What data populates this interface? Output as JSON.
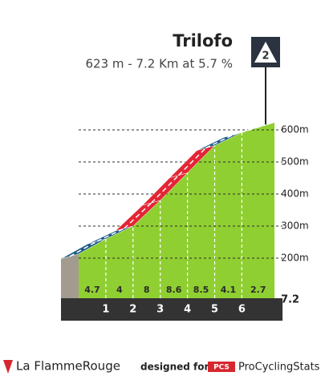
{
  "chart_data": {
    "type": "climb-profile",
    "title": "Trilofo",
    "subtitle": "623 m - 7.2 Km at 5.7 %",
    "category": "2",
    "x": [
      0,
      1,
      2,
      3,
      4,
      5,
      6,
      7.2
    ],
    "elevations": [
      213,
      260,
      300,
      380,
      466,
      551,
      592,
      623
    ],
    "gradients": [
      4.7,
      4.0,
      8.0,
      8.6,
      8.5,
      4.1,
      2.7
    ],
    "segment_colors": [
      "#1d5b87",
      "#1d5b87",
      "#e42535",
      "#e42535",
      "#e42535",
      "#1d5b87",
      "#6cc83a"
    ],
    "xticks": [
      1,
      2,
      3,
      4,
      5,
      6,
      7.2
    ],
    "ylim": [
      100,
      650
    ],
    "yticks": [
      {
        "value": 200,
        "label": "200m"
      },
      {
        "value": 300,
        "label": "300m"
      },
      {
        "value": 400,
        "label": "400m"
      },
      {
        "value": 500,
        "label": "500m"
      },
      {
        "value": 600,
        "label": "600m"
      }
    ],
    "grid": true,
    "footer": {
      "brand": "La FlammeRouge",
      "designed": "designed for",
      "pcs": "PCS",
      "site": "ProCyclingStats"
    }
  }
}
